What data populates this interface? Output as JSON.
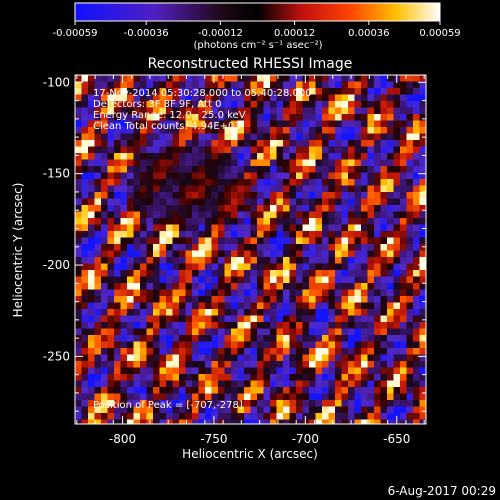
{
  "colorbar": {
    "tick_labels": [
      "-0.00059",
      "-0.00036",
      "-0.00012",
      "0.00012",
      "0.00036",
      "0.00059"
    ],
    "tick_values": [
      -0.00059,
      -0.00036,
      -0.00012,
      0.00012,
      0.00036,
      0.00059
    ],
    "range": [
      -0.00059,
      0.00059
    ],
    "colors": [
      "#0000ff",
      "#000000",
      "#ff0000",
      "#ffff00",
      "#ffffff"
    ]
  },
  "chart_data": {
    "type": "heatmap",
    "title": "Reconstructed RHESSI Image",
    "xlabel": "Heliocentric X (arcsec)",
    "ylabel": "Heliocentric Y (arcsec)",
    "xlim": [
      -826,
      -634
    ],
    "ylim": [
      -287,
      -96
    ],
    "x_ticks": [
      -800,
      -750,
      -700,
      -650
    ],
    "y_ticks": [
      -100,
      -150,
      -200,
      -250
    ],
    "colorbar_unit": "(photons cm⁻² s⁻¹ asec⁻²)",
    "annotations": {
      "time": "17-Nov-2014 05:30:28.000 to 05:40:28.000",
      "detectors": "Detectors: 3F 8F 9F, Att 0",
      "energy": "Energy Range: 12.0 - 25.0 keV",
      "clean": "Clean    Total counts: 4.94E+03",
      "peak": "Position of Peak = [-707,-278]"
    },
    "peak_position": [
      -707,
      -278
    ]
  },
  "footer": {
    "date": "6-Aug-2017 00:29"
  }
}
